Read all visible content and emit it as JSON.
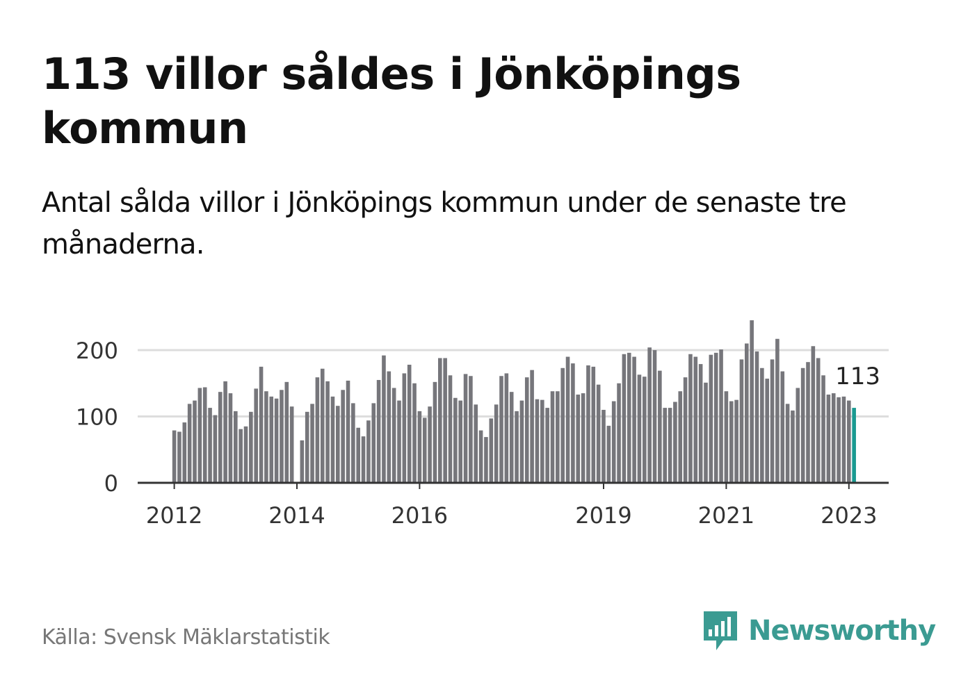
{
  "title": "113 villor såldes i Jönköpings kommun",
  "subtitle": "Antal sålda villor i Jönköpings kommun under de senaste tre månaderna.",
  "source": "Källa: Svensk Mäklarstatistik",
  "brand": {
    "name": "Newsworthy",
    "color": "#3b9b92",
    "icon": "newsworthy-logo-icon"
  },
  "colors": {
    "bar": "#76767b",
    "highlight": "#1a9a91",
    "grid": "#dddddd",
    "axis": "#333333"
  },
  "chart_data": {
    "type": "bar",
    "title": "113 villor såldes i Jönköpings kommun",
    "ylim": [
      0,
      250
    ],
    "yticks": [
      0,
      100,
      200
    ],
    "xticks": [
      {
        "label": "2012",
        "index": 0
      },
      {
        "label": "2014",
        "index": 24
      },
      {
        "label": "2016",
        "index": 48
      },
      {
        "label": "2019",
        "index": 84
      },
      {
        "label": "2021",
        "index": 108
      },
      {
        "label": "2023",
        "index": 132
      }
    ],
    "start": "2012-01",
    "values": [
      79,
      77,
      91,
      119,
      124,
      143,
      144,
      113,
      102,
      137,
      153,
      135,
      108,
      81,
      85,
      107,
      142,
      175,
      138,
      130,
      127,
      140,
      152,
      115,
      null,
      64,
      107,
      119,
      159,
      172,
      153,
      130,
      116,
      140,
      154,
      120,
      83,
      70,
      94,
      120,
      155,
      192,
      168,
      143,
      124,
      165,
      178,
      150,
      108,
      98,
      115,
      152,
      188,
      188,
      162,
      128,
      124,
      164,
      161,
      118,
      79,
      69,
      97,
      118,
      161,
      165,
      137,
      108,
      124,
      159,
      170,
      126,
      125,
      113,
      138,
      138,
      173,
      190,
      180,
      133,
      135,
      177,
      175,
      148,
      110,
      86,
      123,
      150,
      194,
      196,
      190,
      163,
      160,
      204,
      200,
      169,
      113,
      113,
      122,
      138,
      159,
      194,
      190,
      179,
      151,
      193,
      196,
      201,
      138,
      123,
      125,
      186,
      210,
      245,
      198,
      173,
      157,
      186,
      217,
      168,
      119,
      109,
      143,
      173,
      182,
      206,
      188,
      162,
      133,
      135,
      129,
      130,
      124,
      113
    ],
    "highlight_last": true,
    "label": {
      "text": "113"
    }
  }
}
